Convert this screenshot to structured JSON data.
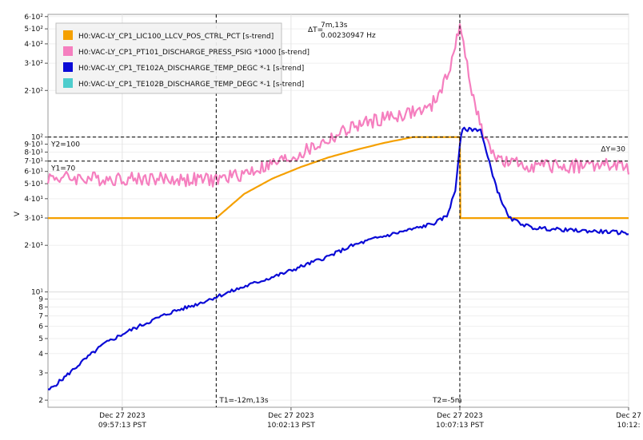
{
  "chart_data": {
    "type": "line",
    "ylabel": "V",
    "yscale": "log",
    "ylim": [
      1.8,
      620
    ],
    "y_tick_labels": [
      {
        "v": 600,
        "t": "6·10²"
      },
      {
        "v": 500,
        "t": "5·10²"
      },
      {
        "v": 400,
        "t": "4·10²"
      },
      {
        "v": 300,
        "t": "3·10²"
      },
      {
        "v": 200,
        "t": "2·10²"
      },
      {
        "v": 100,
        "t": "10²"
      },
      {
        "v": 90,
        "t": "9·10¹"
      },
      {
        "v": 80,
        "t": "8·10¹"
      },
      {
        "v": 70,
        "t": "7·10¹"
      },
      {
        "v": 60,
        "t": "6·10¹"
      },
      {
        "v": 50,
        "t": "5·10¹"
      },
      {
        "v": 40,
        "t": "4·10¹"
      },
      {
        "v": 30,
        "t": "3·10¹"
      },
      {
        "v": 20,
        "t": "2·10¹"
      },
      {
        "v": 10,
        "t": "10¹"
      },
      {
        "v": 9,
        "t": "9"
      },
      {
        "v": 8,
        "t": "8"
      },
      {
        "v": 7,
        "t": "7"
      },
      {
        "v": 6,
        "t": "6"
      },
      {
        "v": 5,
        "t": "5"
      },
      {
        "v": 4,
        "t": "4"
      },
      {
        "v": 3,
        "t": "3"
      },
      {
        "v": 2,
        "t": "2"
      }
    ],
    "xlim": [
      "2023-12-27 09:55:01",
      "2023-12-27 10:12:13"
    ],
    "x_ticks": [
      {
        "t": "2023-12-27 09:57:13",
        "line1": "Dec 27 2023",
        "line2": "09:57:13 PST"
      },
      {
        "t": "2023-12-27 10:02:13",
        "line1": "Dec 27 2023",
        "line2": "10:02:13 PST"
      },
      {
        "t": "2023-12-27 10:07:13",
        "line1": "Dec 27 2023",
        "line2": "10:07:13 PST"
      },
      {
        "t": "2023-12-27 10:12:13",
        "line1": "Dec 27",
        "line2": "10:12:"
      }
    ],
    "cursors": {
      "t1": {
        "t": "2023-12-27 10:00:00",
        "label": "T1=-12m,13s"
      },
      "t2": {
        "t": "2023-12-27 10:07:13",
        "label": "T2=-5m"
      },
      "y1": {
        "v": 70,
        "label": "Y1=70"
      },
      "y2": {
        "v": 100,
        "label": "Y2=100"
      },
      "delta_t": {
        "label": "ΔT=",
        "value": "7m,13s",
        "freq": "0.00230947 Hz"
      },
      "delta_y": {
        "label": "ΔY=30"
      }
    },
    "legend": {
      "position": "top-left"
    },
    "grid": true,
    "series": [
      {
        "name": "H0:VAC-LY_CP1_LIC100_LLCV_POS_CTRL_PCT [s-trend]",
        "color": "#f5a000",
        "points": [
          [
            "2023-12-27 09:55:01",
            30
          ],
          [
            "2023-12-27 10:00:00",
            30
          ],
          [
            "2023-12-27 10:00:50",
            43
          ],
          [
            "2023-12-27 10:01:40",
            54
          ],
          [
            "2023-12-27 10:02:30",
            64
          ],
          [
            "2023-12-27 10:03:20",
            74
          ],
          [
            "2023-12-27 10:04:10",
            83
          ],
          [
            "2023-12-27 10:05:00",
            92
          ],
          [
            "2023-12-27 10:05:50",
            100
          ],
          [
            "2023-12-27 10:07:13",
            100
          ],
          [
            "2023-12-27 10:07:14",
            30
          ],
          [
            "2023-12-27 10:12:13",
            30
          ]
        ]
      },
      {
        "name": "H0:VAC-LY_CP1_PT101_DISCHARGE_PRESS_PSIG *1000 [s-trend]",
        "color": "#f57fbf",
        "points": [
          [
            "2023-12-27 09:55:01",
            55
          ],
          [
            "2023-12-27 09:56:30",
            54
          ],
          [
            "2023-12-27 09:58:00",
            54
          ],
          [
            "2023-12-27 09:59:00",
            53
          ],
          [
            "2023-12-27 10:00:00",
            53
          ],
          [
            "2023-12-27 10:00:40",
            57
          ],
          [
            "2023-12-27 10:01:30",
            65
          ],
          [
            "2023-12-27 10:02:20",
            75
          ],
          [
            "2023-12-27 10:03:10",
            92
          ],
          [
            "2023-12-27 10:04:00",
            115
          ],
          [
            "2023-12-27 10:04:50",
            130
          ],
          [
            "2023-12-27 10:05:40",
            142
          ],
          [
            "2023-12-27 10:06:20",
            152
          ],
          [
            "2023-12-27 10:06:50",
            240
          ],
          [
            "2023-12-27 10:07:05",
            400
          ],
          [
            "2023-12-27 10:07:13",
            500
          ],
          [
            "2023-12-27 10:07:26",
            300
          ],
          [
            "2023-12-27 10:07:40",
            160
          ],
          [
            "2023-12-27 10:08:00",
            90
          ],
          [
            "2023-12-27 10:08:30",
            68
          ],
          [
            "2023-12-27 10:09:30",
            65
          ],
          [
            "2023-12-27 10:10:30",
            65
          ],
          [
            "2023-12-27 10:11:30",
            66
          ],
          [
            "2023-12-27 10:12:13",
            63
          ]
        ]
      },
      {
        "name": "H0:VAC-LY_CP1_TE102A_DISCHARGE_TEMP_DEGC *-1 [s-trend]",
        "color": "#0a0ad6",
        "points": [
          [
            "2023-12-27 09:55:01",
            2.3
          ],
          [
            "2023-12-27 09:55:30",
            2.8
          ],
          [
            "2023-12-27 09:56:00",
            3.5
          ],
          [
            "2023-12-27 09:56:40",
            4.6
          ],
          [
            "2023-12-27 09:57:20",
            5.5
          ],
          [
            "2023-12-27 09:58:00",
            6.4
          ],
          [
            "2023-12-27 09:58:40",
            7.4
          ],
          [
            "2023-12-27 09:59:20",
            8.2
          ],
          [
            "2023-12-27 10:00:00",
            9.3
          ],
          [
            "2023-12-27 10:00:40",
            10.5
          ],
          [
            "2023-12-27 10:01:20",
            11.8
          ],
          [
            "2023-12-27 10:02:00",
            13.2
          ],
          [
            "2023-12-27 10:02:40",
            15
          ],
          [
            "2023-12-27 10:03:20",
            17
          ],
          [
            "2023-12-27 10:04:00",
            19.8
          ],
          [
            "2023-12-27 10:04:40",
            22
          ],
          [
            "2023-12-27 10:05:20",
            24
          ],
          [
            "2023-12-27 10:06:00",
            26
          ],
          [
            "2023-12-27 10:06:30",
            28
          ],
          [
            "2023-12-27 10:06:50",
            31
          ],
          [
            "2023-12-27 10:07:05",
            45
          ],
          [
            "2023-12-27 10:07:13",
            90
          ],
          [
            "2023-12-27 10:07:18",
            112
          ],
          [
            "2023-12-27 10:07:50",
            112
          ],
          [
            "2023-12-27 10:08:00",
            80
          ],
          [
            "2023-12-27 10:08:20",
            45
          ],
          [
            "2023-12-27 10:08:40",
            30
          ],
          [
            "2023-12-27 10:09:20",
            26
          ],
          [
            "2023-12-27 10:10:30",
            25
          ],
          [
            "2023-12-27 10:11:30",
            24.5
          ],
          [
            "2023-12-27 10:12:13",
            24
          ]
        ]
      },
      {
        "name": "H0:VAC-LY_CP1_TE102B_DISCHARGE_TEMP_DEGC *-1 [s-trend]",
        "color": "#4ecdcd",
        "points": []
      }
    ]
  }
}
